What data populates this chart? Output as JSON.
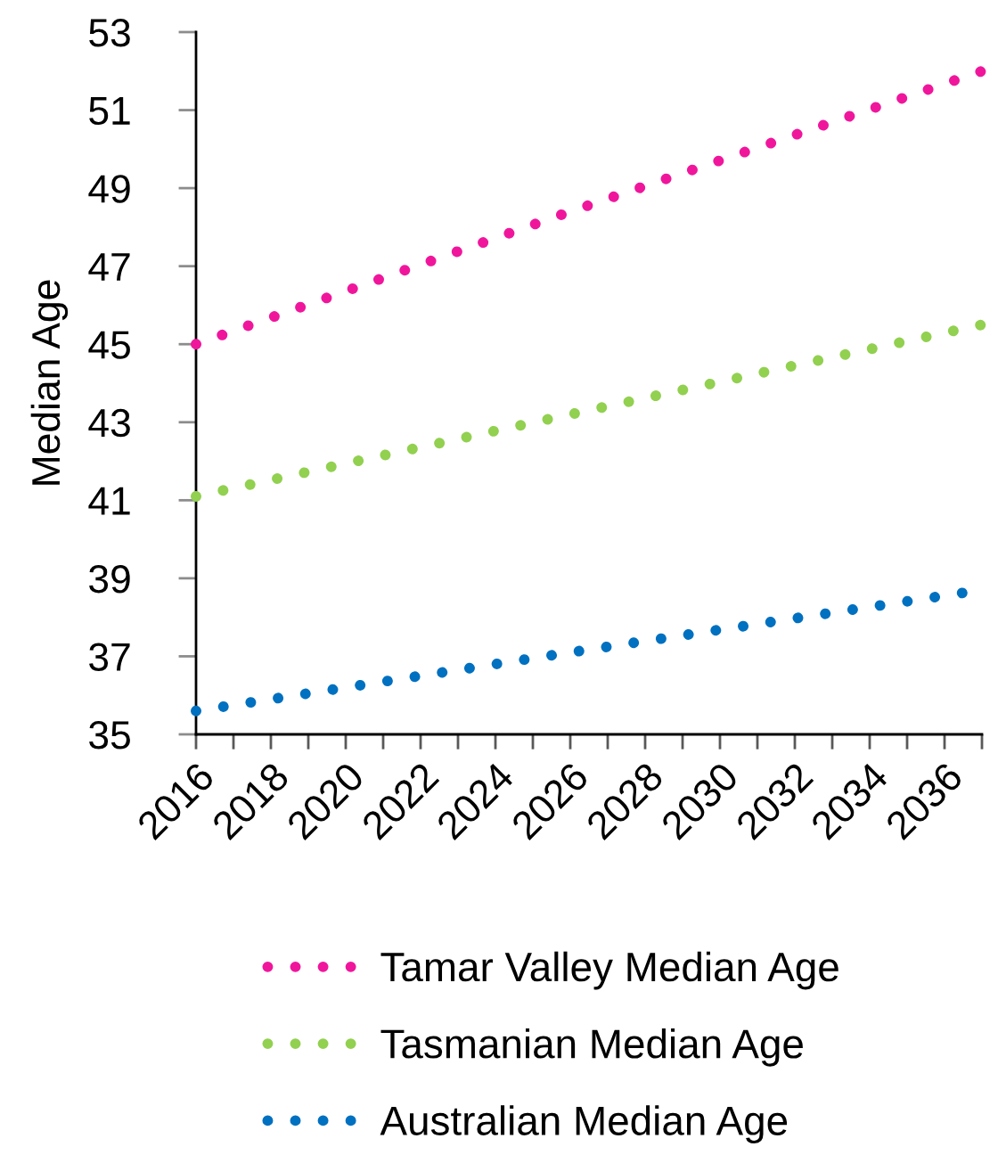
{
  "chart_data": {
    "type": "line",
    "ylabel": "Median Age",
    "x": [
      2016,
      2026,
      2037
    ],
    "xlim": [
      2016,
      2037
    ],
    "xticks": [
      2016,
      {
        "value": 2017,
        "label": null
      },
      2018,
      {
        "value": 2019,
        "label": null
      },
      2020,
      {
        "value": 2021,
        "label": null
      },
      2022,
      {
        "value": 2023,
        "label": null
      },
      2024,
      {
        "value": 2025,
        "label": null
      },
      2026,
      {
        "value": 2027,
        "label": null
      },
      2028,
      {
        "value": 2029,
        "label": null
      },
      2030,
      {
        "value": 2031,
        "label": null
      },
      2032,
      {
        "value": 2033,
        "label": null
      },
      2034,
      {
        "value": 2035,
        "label": null
      },
      2036,
      {
        "value": 2037,
        "label": null
      }
    ],
    "ylim": [
      35,
      53
    ],
    "yticks": [
      35,
      37,
      39,
      41,
      43,
      45,
      47,
      49,
      51,
      53
    ],
    "grid": false,
    "legend": "bottom",
    "line_style": "dotted",
    "marker": "none",
    "series": [
      {
        "name": "Tamar Valley Median Age",
        "color": "#f0169c",
        "values": [
          45.0,
          48.4,
          52.0
        ]
      },
      {
        "name": "Tasmanian Median Age",
        "color": "#92d050",
        "values": [
          41.1,
          43.2,
          45.5
        ]
      },
      {
        "name": "Australian Median Age",
        "color": "#0070c0",
        "values": [
          35.6,
          37.1,
          38.7
        ]
      }
    ]
  }
}
